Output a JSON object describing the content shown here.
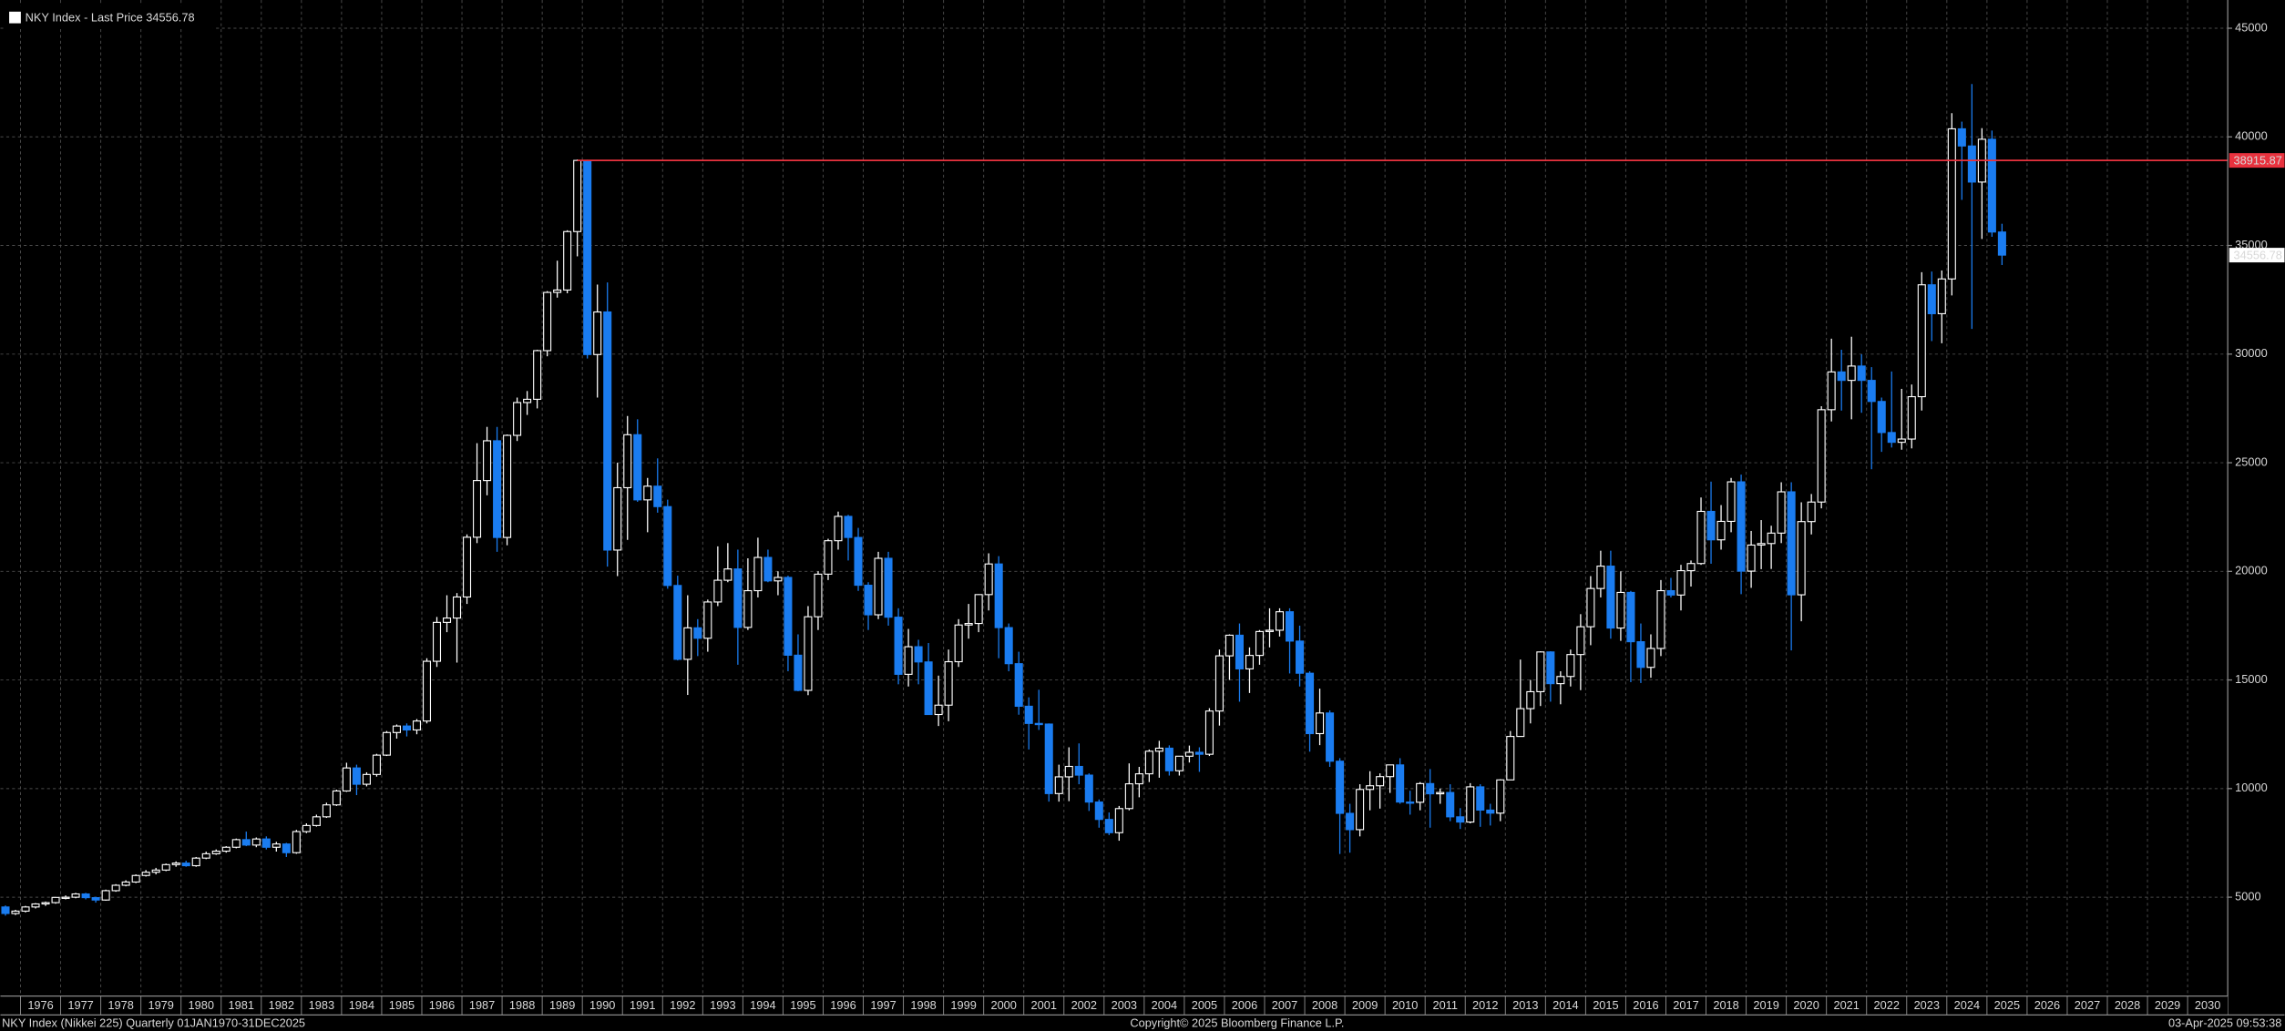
{
  "chart_data": {
    "type": "candlestick",
    "title": "NKY Index - Last Price 34556.78",
    "last_price": 34556.78,
    "reference_line": {
      "value": 38915.87,
      "color": "#e8323e"
    },
    "up_color": "#ffffff",
    "down_color": "#1a7cf0",
    "legend_color": "#ffffff",
    "grid": true,
    "footer": {
      "left": "NKY Index (Nikkei 225)  Quarterly 01JAN1970-31DEC2025",
      "center": "Copyright© 2025 Bloomberg Finance L.P.",
      "right": "03-Apr-2025 09:53:38"
    },
    "xlim": [
      1975.5,
      2031
    ],
    "xticks": [
      1976,
      1977,
      1978,
      1979,
      1980,
      1981,
      1982,
      1983,
      1984,
      1985,
      1986,
      1987,
      1988,
      1989,
      1990,
      1991,
      1992,
      1993,
      1994,
      1995,
      1996,
      1997,
      1998,
      1999,
      2000,
      2001,
      2002,
      2003,
      2004,
      2005,
      2006,
      2007,
      2008,
      2009,
      2010,
      2011,
      2012,
      2013,
      2014,
      2015,
      2016,
      2017,
      2018,
      2019,
      2020,
      2021,
      2022,
      2023,
      2024,
      2025,
      2026,
      2027,
      2028,
      2029,
      2030
    ],
    "ylim": [
      450,
      46300
    ],
    "yticks": [
      5000,
      10000,
      15000,
      20000,
      25000,
      30000,
      35000,
      40000,
      45000
    ],
    "x": [
      1975.625,
      1975.875,
      1976.125,
      1976.375,
      1976.625,
      1976.875,
      1977.125,
      1977.375,
      1977.625,
      1977.875,
      1978.125,
      1978.375,
      1978.625,
      1978.875,
      1979.125,
      1979.375,
      1979.625,
      1979.875,
      1980.125,
      1980.375,
      1980.625,
      1980.875,
      1981.125,
      1981.375,
      1981.625,
      1981.875,
      1982.125,
      1982.375,
      1982.625,
      1982.875,
      1983.125,
      1983.375,
      1983.625,
      1983.875,
      1984.125,
      1984.375,
      1984.625,
      1984.875,
      1985.125,
      1985.375,
      1985.625,
      1985.875,
      1986.125,
      1986.375,
      1986.625,
      1986.875,
      1987.125,
      1987.375,
      1987.625,
      1987.875,
      1988.125,
      1988.375,
      1988.625,
      1988.875,
      1989.125,
      1989.375,
      1989.625,
      1989.875,
      1990.125,
      1990.375,
      1990.625,
      1990.875,
      1991.125,
      1991.375,
      1991.625,
      1991.875,
      1992.125,
      1992.375,
      1992.625,
      1992.875,
      1993.125,
      1993.375,
      1993.625,
      1993.875,
      1994.125,
      1994.375,
      1994.625,
      1994.875,
      1995.125,
      1995.375,
      1995.625,
      1995.875,
      1996.125,
      1996.375,
      1996.625,
      1996.875,
      1997.125,
      1997.375,
      1997.625,
      1997.875,
      1998.125,
      1998.375,
      1998.625,
      1998.875,
      1999.125,
      1999.375,
      1999.625,
      1999.875,
      2000.125,
      2000.375,
      2000.625,
      2000.875,
      2001.125,
      2001.375,
      2001.625,
      2001.875,
      2002.125,
      2002.375,
      2002.625,
      2002.875,
      2003.125,
      2003.375,
      2003.625,
      2003.875,
      2004.125,
      2004.375,
      2004.625,
      2004.875,
      2005.125,
      2005.375,
      2005.625,
      2005.875,
      2006.125,
      2006.375,
      2006.625,
      2006.875,
      2007.125,
      2007.375,
      2007.625,
      2007.875,
      2008.125,
      2008.375,
      2008.625,
      2008.875,
      2009.125,
      2009.375,
      2009.625,
      2009.875,
      2010.125,
      2010.375,
      2010.625,
      2010.875,
      2011.125,
      2011.375,
      2011.625,
      2011.875,
      2012.125,
      2012.375,
      2012.625,
      2012.875,
      2013.125,
      2013.375,
      2013.625,
      2013.875,
      2014.125,
      2014.375,
      2014.625,
      2014.875,
      2015.125,
      2015.375,
      2015.625,
      2015.875,
      2016.125,
      2016.375,
      2016.625,
      2016.875,
      2017.125,
      2017.375,
      2017.625,
      2017.875,
      2018.125,
      2018.375,
      2018.625,
      2018.875,
      2019.125,
      2019.375,
      2019.625,
      2019.875,
      2020.125,
      2020.375,
      2020.625,
      2020.875,
      2021.125,
      2021.375,
      2021.625,
      2021.875,
      2022.125,
      2022.375,
      2022.625,
      2022.875,
      2023.125,
      2023.375,
      2023.625,
      2023.875,
      2024.125,
      2024.375,
      2024.625,
      2024.875,
      2025.125,
      2025.375
    ],
    "candles": [
      [
        4550,
        4620,
        4150,
        4250
      ],
      [
        4250,
        4420,
        4180,
        4360
      ],
      [
        4360,
        4600,
        4300,
        4550
      ],
      [
        4550,
        4730,
        4480,
        4690
      ],
      [
        4690,
        4800,
        4600,
        4750
      ],
      [
        4750,
        5010,
        4700,
        4990
      ],
      [
        4990,
        5080,
        4900,
        5000
      ],
      [
        5000,
        5200,
        4950,
        5150
      ],
      [
        5150,
        5200,
        4900,
        4980
      ],
      [
        4980,
        5020,
        4750,
        4870
      ],
      [
        4870,
        5350,
        4840,
        5300
      ],
      [
        5300,
        5600,
        5250,
        5550
      ],
      [
        5550,
        5780,
        5500,
        5700
      ],
      [
        5700,
        6050,
        5650,
        6000
      ],
      [
        6000,
        6250,
        5950,
        6150
      ],
      [
        6150,
        6350,
        6050,
        6250
      ],
      [
        6250,
        6550,
        6200,
        6500
      ],
      [
        6500,
        6650,
        6400,
        6570
      ],
      [
        6570,
        6680,
        6400,
        6450
      ],
      [
        6450,
        6850,
        6400,
        6800
      ],
      [
        6800,
        7100,
        6750,
        7000
      ],
      [
        7000,
        7200,
        6950,
        7120
      ],
      [
        7120,
        7350,
        7050,
        7300
      ],
      [
        7300,
        7700,
        7250,
        7650
      ],
      [
        7650,
        8020,
        7350,
        7400
      ],
      [
        7400,
        7750,
        7300,
        7680
      ],
      [
        7680,
        7800,
        7200,
        7300
      ],
      [
        7300,
        7550,
        7100,
        7450
      ],
      [
        7450,
        7500,
        6850,
        7050
      ],
      [
        7050,
        8100,
        7000,
        8020
      ],
      [
        8020,
        8400,
        7950,
        8300
      ],
      [
        8300,
        8800,
        8250,
        8700
      ],
      [
        8700,
        9350,
        8650,
        9250
      ],
      [
        9250,
        9950,
        9200,
        9890
      ],
      [
        9890,
        11190,
        9850,
        10950
      ],
      [
        10950,
        11100,
        9700,
        10200
      ],
      [
        10200,
        10750,
        10100,
        10650
      ],
      [
        10650,
        11600,
        10550,
        11540
      ],
      [
        11540,
        12650,
        11500,
        12580
      ],
      [
        12580,
        12950,
        12300,
        12880
      ],
      [
        12880,
        13000,
        12400,
        12700
      ],
      [
        12700,
        13200,
        12500,
        13110
      ],
      [
        13110,
        16000,
        13000,
        15860
      ],
      [
        15860,
        17900,
        15600,
        17650
      ],
      [
        17650,
        18900,
        17200,
        17850
      ],
      [
        17850,
        19000,
        15800,
        18820
      ],
      [
        18820,
        21700,
        18500,
        21570
      ],
      [
        21570,
        25900,
        21300,
        24180
      ],
      [
        24180,
        26650,
        23500,
        26010
      ],
      [
        26010,
        26650,
        20900,
        21560
      ],
      [
        21560,
        26300,
        21200,
        26260
      ],
      [
        26260,
        28000,
        26000,
        27770
      ],
      [
        27770,
        28300,
        27200,
        27920
      ],
      [
        27920,
        30200,
        27500,
        30160
      ],
      [
        30160,
        32900,
        29900,
        32840
      ],
      [
        32840,
        34300,
        32600,
        32950
      ],
      [
        32950,
        35700,
        32800,
        35640
      ],
      [
        35640,
        38957,
        34500,
        38915.87
      ],
      [
        38915.87,
        38950,
        29800,
        29980
      ],
      [
        29980,
        33200,
        28000,
        31940
      ],
      [
        31940,
        33300,
        20220,
        20980
      ],
      [
        20980,
        25000,
        19780,
        23850
      ],
      [
        23850,
        27150,
        21450,
        26290
      ],
      [
        26290,
        27000,
        23200,
        23290
      ],
      [
        23290,
        24300,
        21800,
        23920
      ],
      [
        23920,
        25200,
        22700,
        22980
      ],
      [
        22980,
        23300,
        19200,
        19350
      ],
      [
        19350,
        19800,
        15900,
        15950
      ],
      [
        15950,
        18900,
        14310,
        17400
      ],
      [
        17400,
        17800,
        16100,
        16920
      ],
      [
        16920,
        18700,
        16300,
        18590
      ],
      [
        18590,
        21150,
        18400,
        19590
      ],
      [
        19590,
        21300,
        19500,
        20110
      ],
      [
        20110,
        21000,
        15700,
        17420
      ],
      [
        17420,
        20600,
        17300,
        19110
      ],
      [
        19110,
        21550,
        18800,
        20640
      ],
      [
        20640,
        21000,
        19500,
        19560
      ],
      [
        19560,
        20000,
        18900,
        19720
      ],
      [
        19720,
        19800,
        15400,
        16140
      ],
      [
        16140,
        17100,
        14480,
        14520
      ],
      [
        14520,
        18400,
        14300,
        17910
      ],
      [
        17910,
        20000,
        17300,
        19870
      ],
      [
        19870,
        21500,
        19600,
        21410
      ],
      [
        21410,
        22750,
        21000,
        22530
      ],
      [
        22530,
        22600,
        20500,
        21560
      ],
      [
        21560,
        22000,
        19100,
        19360
      ],
      [
        19360,
        19500,
        17300,
        18000
      ],
      [
        18000,
        20900,
        17800,
        20600
      ],
      [
        20600,
        20900,
        17500,
        17890
      ],
      [
        17890,
        18300,
        14800,
        15260
      ],
      [
        15260,
        17350,
        14700,
        16530
      ],
      [
        16530,
        16850,
        14800,
        15830
      ],
      [
        15830,
        16700,
        13400,
        13410
      ],
      [
        13410,
        15200,
        12880,
        13840
      ],
      [
        13840,
        16400,
        13100,
        15840
      ],
      [
        15840,
        17800,
        15600,
        17530
      ],
      [
        17530,
        18500,
        16900,
        17600
      ],
      [
        17600,
        18950,
        17200,
        18930
      ],
      [
        18930,
        20830,
        18200,
        20340
      ],
      [
        20340,
        20700,
        16000,
        17410
      ],
      [
        17410,
        17600,
        15400,
        15750
      ],
      [
        15750,
        16300,
        13400,
        13790
      ],
      [
        13790,
        14200,
        11800,
        12999
      ],
      [
        12999,
        14550,
        12700,
        12970
      ],
      [
        12970,
        13000,
        9400,
        9770
      ],
      [
        9770,
        11100,
        9400,
        10540
      ],
      [
        10540,
        11900,
        9420,
        11020
      ],
      [
        11020,
        12080,
        10200,
        10620
      ],
      [
        10620,
        10700,
        8970,
        9380
      ],
      [
        9380,
        9500,
        8200,
        8580
      ],
      [
        8580,
        8900,
        7860,
        7970
      ],
      [
        7970,
        9200,
        7600,
        9080
      ],
      [
        9080,
        11160,
        9000,
        10220
      ],
      [
        10220,
        11000,
        9600,
        10680
      ],
      [
        10680,
        11800,
        10300,
        11720
      ],
      [
        11720,
        12200,
        10500,
        11860
      ],
      [
        11860,
        11990,
        10600,
        10820
      ],
      [
        10820,
        11500,
        10600,
        11490
      ],
      [
        11490,
        11980,
        11200,
        11670
      ],
      [
        11670,
        11900,
        10770,
        11580
      ],
      [
        11580,
        13700,
        11500,
        13570
      ],
      [
        13570,
        16400,
        12900,
        16110
      ],
      [
        16110,
        17100,
        15000,
        17060
      ],
      [
        17060,
        17600,
        14000,
        15510
      ],
      [
        15510,
        16500,
        14400,
        16130
      ],
      [
        16130,
        17300,
        15700,
        17230
      ],
      [
        17230,
        18300,
        16500,
        17290
      ],
      [
        17290,
        18300,
        17000,
        18140
      ],
      [
        18140,
        18300,
        15300,
        16790
      ],
      [
        16790,
        17500,
        14700,
        15310
      ],
      [
        15310,
        15400,
        11700,
        12530
      ],
      [
        12530,
        14600,
        12000,
        13480
      ],
      [
        13480,
        13600,
        11000,
        11260
      ],
      [
        11260,
        11400,
        6990,
        8860
      ],
      [
        8860,
        9300,
        7050,
        8110
      ],
      [
        8110,
        10200,
        7800,
        9960
      ],
      [
        9960,
        10800,
        9000,
        10130
      ],
      [
        10130,
        10700,
        9080,
        10550
      ],
      [
        10550,
        11100,
        9800,
        11090
      ],
      [
        11090,
        11400,
        9300,
        9380
      ],
      [
        9380,
        9900,
        8800,
        9370
      ],
      [
        9370,
        10300,
        9000,
        10230
      ],
      [
        10230,
        10900,
        8200,
        9760
      ],
      [
        9760,
        10000,
        9300,
        9820
      ],
      [
        9820,
        10200,
        8500,
        8700
      ],
      [
        8700,
        9100,
        8140,
        8460
      ],
      [
        8460,
        10250,
        8400,
        10080
      ],
      [
        10080,
        10200,
        8240,
        9010
      ],
      [
        9010,
        9300,
        8300,
        8870
      ],
      [
        8870,
        10430,
        8500,
        10400
      ],
      [
        10400,
        12650,
        10400,
        12400
      ],
      [
        12400,
        15940,
        12400,
        13680
      ],
      [
        13680,
        15000,
        13000,
        14460
      ],
      [
        14460,
        16320,
        13800,
        16290
      ],
      [
        16290,
        16320,
        14000,
        14830
      ],
      [
        14830,
        15400,
        13880,
        15160
      ],
      [
        15160,
        16400,
        14700,
        16170
      ],
      [
        16170,
        18030,
        14530,
        17450
      ],
      [
        17450,
        19780,
        16600,
        19210
      ],
      [
        19210,
        20950,
        18800,
        20240
      ],
      [
        20240,
        20950,
        16900,
        17390
      ],
      [
        17390,
        20000,
        16800,
        19030
      ],
      [
        19030,
        19100,
        14900,
        16760
      ],
      [
        16760,
        17600,
        14860,
        15580
      ],
      [
        15580,
        17100,
        15100,
        16450
      ],
      [
        16450,
        19600,
        16100,
        19110
      ],
      [
        19110,
        19700,
        18800,
        18910
      ],
      [
        18910,
        20300,
        18200,
        20030
      ],
      [
        20030,
        20500,
        19300,
        20360
      ],
      [
        20360,
        23400,
        20300,
        22760
      ],
      [
        22760,
        24130,
        20350,
        21450
      ],
      [
        21450,
        23050,
        21000,
        22300
      ],
      [
        22300,
        24300,
        21800,
        24120
      ],
      [
        24120,
        24450,
        18950,
        20010
      ],
      [
        20010,
        21860,
        19240,
        21210
      ],
      [
        21210,
        22360,
        20100,
        21280
      ],
      [
        21280,
        22100,
        20110,
        21760
      ],
      [
        21760,
        24100,
        21300,
        23660
      ],
      [
        23660,
        24100,
        16360,
        18920
      ],
      [
        18920,
        23180,
        17700,
        22290
      ],
      [
        22290,
        23560,
        21700,
        23190
      ],
      [
        23190,
        27600,
        22900,
        27440
      ],
      [
        27440,
        30710,
        26900,
        29180
      ],
      [
        29180,
        30200,
        27400,
        28790
      ],
      [
        28790,
        30800,
        27000,
        29450
      ],
      [
        29450,
        29990,
        27300,
        28790
      ],
      [
        28790,
        29400,
        24700,
        27820
      ],
      [
        27820,
        28000,
        25500,
        26390
      ],
      [
        26390,
        29200,
        25700,
        25940
      ],
      [
        25940,
        28400,
        25600,
        26090
      ],
      [
        26090,
        28600,
        25660,
        28040
      ],
      [
        28040,
        33770,
        27400,
        33190
      ],
      [
        33190,
        33800,
        30600,
        31860
      ],
      [
        31860,
        33850,
        30500,
        33460
      ],
      [
        33460,
        41090,
        32700,
        40370
      ],
      [
        40370,
        40700,
        37100,
        39580
      ],
      [
        39580,
        42430,
        31160,
        37920
      ],
      [
        37920,
        40400,
        35300,
        39890
      ],
      [
        39890,
        40290,
        35400,
        35620
      ],
      [
        35620,
        36000,
        34100,
        34556.78
      ]
    ]
  }
}
